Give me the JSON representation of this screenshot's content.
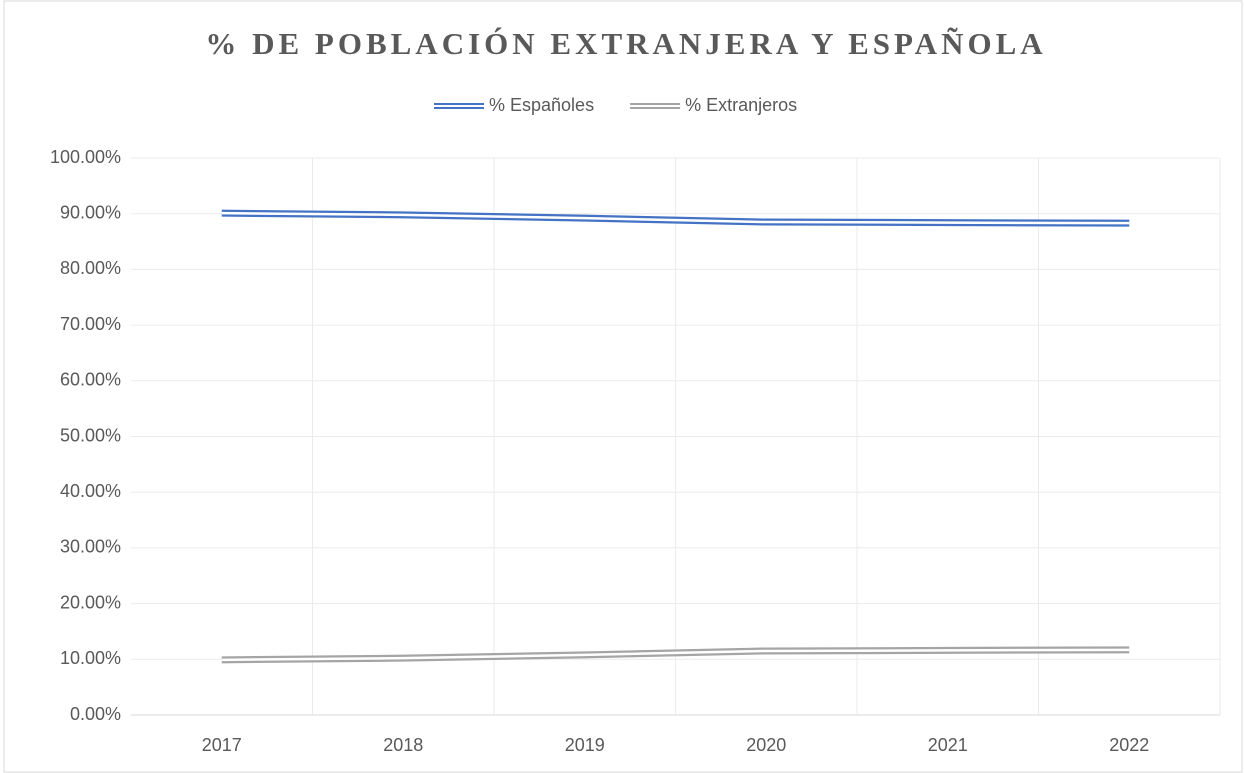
{
  "chart_data": {
    "type": "line",
    "title": "% DE POBLACIÓN EXTRANJERA Y ESPAÑOLA",
    "categories": [
      "2017",
      "2018",
      "2019",
      "2020",
      "2021",
      "2022"
    ],
    "series": [
      {
        "name": "% Españoles",
        "color": "#4472c4",
        "values": [
          90.1,
          89.8,
          89.2,
          88.5,
          88.4,
          88.3
        ]
      },
      {
        "name": "% Extranjeros",
        "color": "#a5a5a5",
        "values": [
          9.9,
          10.2,
          10.8,
          11.5,
          11.6,
          11.7
        ]
      }
    ],
    "ylim": [
      0,
      100
    ],
    "yticks": [
      {
        "value": 0,
        "label": "0.00%"
      },
      {
        "value": 10,
        "label": "10.00%"
      },
      {
        "value": 20,
        "label": "20.00%"
      },
      {
        "value": 30,
        "label": "30.00%"
      },
      {
        "value": 40,
        "label": "40.00%"
      },
      {
        "value": 50,
        "label": "50.00%"
      },
      {
        "value": 60,
        "label": "60.00%"
      },
      {
        "value": 70,
        "label": "70.00%"
      },
      {
        "value": 80,
        "label": "80.00%"
      },
      {
        "value": 90,
        "label": "90.00%"
      },
      {
        "value": 100,
        "label": "100.00%"
      }
    ],
    "grid": true,
    "legend": "top"
  }
}
